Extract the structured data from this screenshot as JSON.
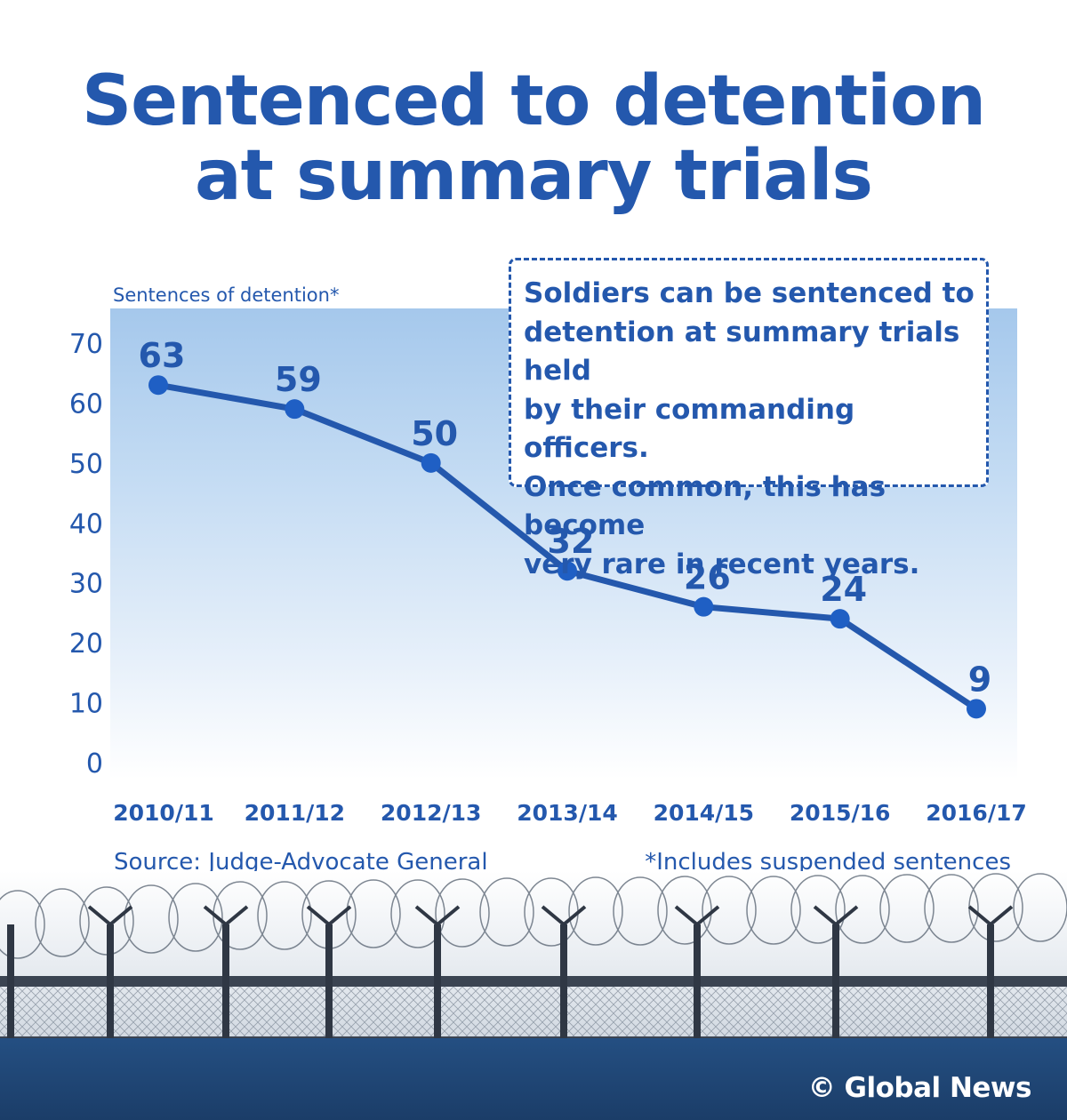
{
  "title": {
    "line1": "Sentenced to detention",
    "line2": "at summary trials"
  },
  "note": {
    "lines": [
      "Soldiers can be sentenced to",
      "detention at summary trials held",
      "by their commanding officers.",
      "Once common, this has become",
      "very rare in recent years."
    ]
  },
  "source": "Source: Judge-Advocate General",
  "footnote": "*Includes suspended sentences",
  "credit": "© Global News",
  "colors": {
    "line": "#2458ad",
    "marker": "#1f5fc4",
    "text": "#2458ad",
    "panel_top": "#a5c8ec",
    "band": "#1b3d68"
  },
  "chart_data": {
    "type": "line",
    "ylabel": "Sentences of detention*",
    "xlabel": "",
    "categories": [
      "2010/11",
      "2011/12",
      "2012/13",
      "2013/14",
      "2014/15",
      "2015/16",
      "2016/17"
    ],
    "series": [
      {
        "values": [
          63,
          59,
          50,
          32,
          26,
          24,
          9
        ]
      }
    ],
    "ylim": [
      0,
      70
    ],
    "yticks": [
      0,
      10,
      20,
      30,
      40,
      50,
      60,
      70
    ],
    "data_labels": true,
    "grid": false
  }
}
